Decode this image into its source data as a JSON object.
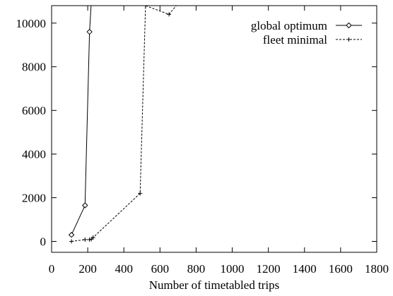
{
  "chart_data": {
    "type": "line",
    "title": "",
    "xlabel": "Number of timetabled trips",
    "ylabel": "",
    "xlim": [
      0,
      1800
    ],
    "ylim": [
      -500,
      10800
    ],
    "xticks": [
      0,
      200,
      400,
      600,
      800,
      1000,
      1200,
      1400,
      1600,
      1800
    ],
    "yticks": [
      0,
      2000,
      4000,
      6000,
      8000,
      10000
    ],
    "grid": false,
    "legend": "top-right",
    "series": [
      {
        "name": "global optimum",
        "line_style": "solid",
        "marker": "diamond",
        "x": [
          110,
          185,
          210,
          220
        ],
        "y": [
          300,
          1650,
          9600,
          11000
        ]
      },
      {
        "name": "fleet minimal",
        "line_style": "dashed",
        "marker": "plus",
        "x": [
          110,
          185,
          210,
          220,
          230,
          490,
          520,
          650,
          700
        ],
        "y": [
          0,
          80,
          80,
          100,
          180,
          2200,
          10800,
          10400,
          10900
        ]
      }
    ]
  }
}
